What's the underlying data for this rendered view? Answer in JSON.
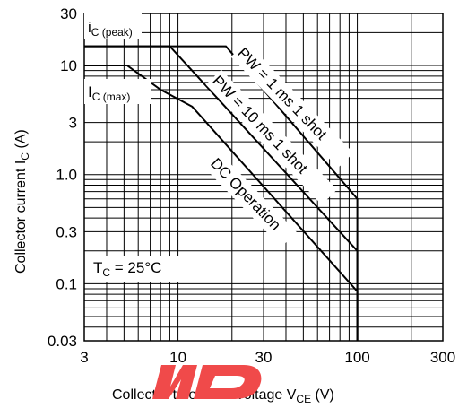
{
  "chart_data": {
    "type": "line",
    "x_scale": "log",
    "y_scale": "log",
    "xlim": [
      3,
      300
    ],
    "ylim": [
      0.03,
      30
    ],
    "xticks": [
      3,
      10,
      30,
      100,
      300
    ],
    "xtick_labels": [
      "3",
      "10",
      "30",
      "100",
      "300"
    ],
    "yticks": [
      0.03,
      0.1,
      0.3,
      1,
      3,
      10,
      30
    ],
    "ytick_labels": [
      "0.03",
      "0.1",
      "0.3",
      "1.0",
      "3",
      "10",
      "30"
    ],
    "grid": true,
    "xlabel": {
      "main": "Collector to emitter voltage  V",
      "sub": "CE",
      "unit": "  (V)"
    },
    "ylabel": {
      "main": "Collector current  I",
      "sub": "C",
      "unit": "  (A)"
    },
    "series": [
      {
        "name": "PW = 1 ms 1 shot",
        "points": [
          [
            3,
            15
          ],
          [
            18.5,
            15
          ],
          [
            100,
            0.6
          ],
          [
            100,
            0.03
          ]
        ]
      },
      {
        "name": "PW = 10 ms 1 shot",
        "points": [
          [
            3,
            15
          ],
          [
            9,
            15
          ],
          [
            100,
            0.2
          ],
          [
            100,
            0.03
          ]
        ]
      },
      {
        "name": "DC Operation",
        "points": [
          [
            3,
            10
          ],
          [
            5.2,
            10
          ],
          [
            8,
            6
          ],
          [
            12,
            4.2
          ],
          [
            100,
            0.085
          ],
          [
            100,
            0.03
          ]
        ]
      }
    ],
    "annotations": {
      "ic_peak": {
        "main": "i",
        "sub": "C (peak)"
      },
      "ic_max": {
        "main": "I",
        "sub": "C (max)"
      },
      "tc": {
        "main": "T",
        "sub": "C",
        "rest": " = 25°C"
      },
      "pw1": "PW = 1 ms 1 shot",
      "pw10": "PW = 10 ms 1 shot",
      "dc": "DC Operation"
    },
    "colors": {
      "curve": "#000000",
      "grid": "#000000",
      "watermark": "#f04a4a"
    }
  }
}
